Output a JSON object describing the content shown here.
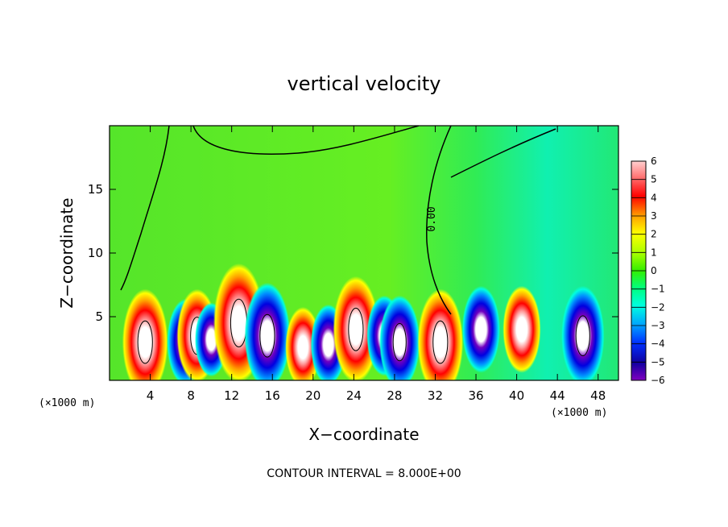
{
  "chart_data": {
    "type": "heatmap",
    "title": "vertical velocity",
    "xlabel": "X−coordinate",
    "ylabel": "Z−coordinate",
    "x_unit": "(×1000 m)",
    "x_unit_right": "(×1000 m)",
    "xlim": [
      0,
      50
    ],
    "ylim": [
      0,
      20
    ],
    "x_ticks": [
      "4",
      "8",
      "12",
      "16",
      "20",
      "24",
      "28",
      "32",
      "36",
      "40",
      "44",
      "48"
    ],
    "y_ticks": [
      "5",
      "10",
      "15"
    ],
    "colorbar": {
      "ticks": [
        "6",
        "5",
        "4",
        "3",
        "2",
        "1",
        "0",
        "−1",
        "−2",
        "−3",
        "−4",
        "−5",
        "−6"
      ],
      "min": -6,
      "max": 6
    },
    "contour_label": "0.00",
    "note": "CONTOUR INTERVAL = 8.000E+00",
    "cells": [
      {
        "x": 3.5,
        "z": 3.0,
        "w": 9
      },
      {
        "x": 7.5,
        "z": 3.0,
        "w": -6
      },
      {
        "x": 8.6,
        "z": 3.5,
        "w": 7
      },
      {
        "x": 10.0,
        "z": 3.2,
        "w": -4
      },
      {
        "x": 12.7,
        "z": 4.5,
        "w": 11
      },
      {
        "x": 15.5,
        "z": 3.5,
        "w": -9
      },
      {
        "x": 19.0,
        "z": 2.6,
        "w": 5
      },
      {
        "x": 21.5,
        "z": 2.8,
        "w": -5
      },
      {
        "x": 24.2,
        "z": 4.0,
        "w": 9
      },
      {
        "x": 27.0,
        "z": 3.5,
        "w": -5
      },
      {
        "x": 28.5,
        "z": 3.0,
        "w": -7
      },
      {
        "x": 32.5,
        "z": 3.0,
        "w": 9
      },
      {
        "x": 36.5,
        "z": 4.0,
        "w": -6
      },
      {
        "x": 40.5,
        "z": 4.0,
        "w": 6
      },
      {
        "x": 46.5,
        "z": 3.5,
        "w": -8
      }
    ]
  }
}
